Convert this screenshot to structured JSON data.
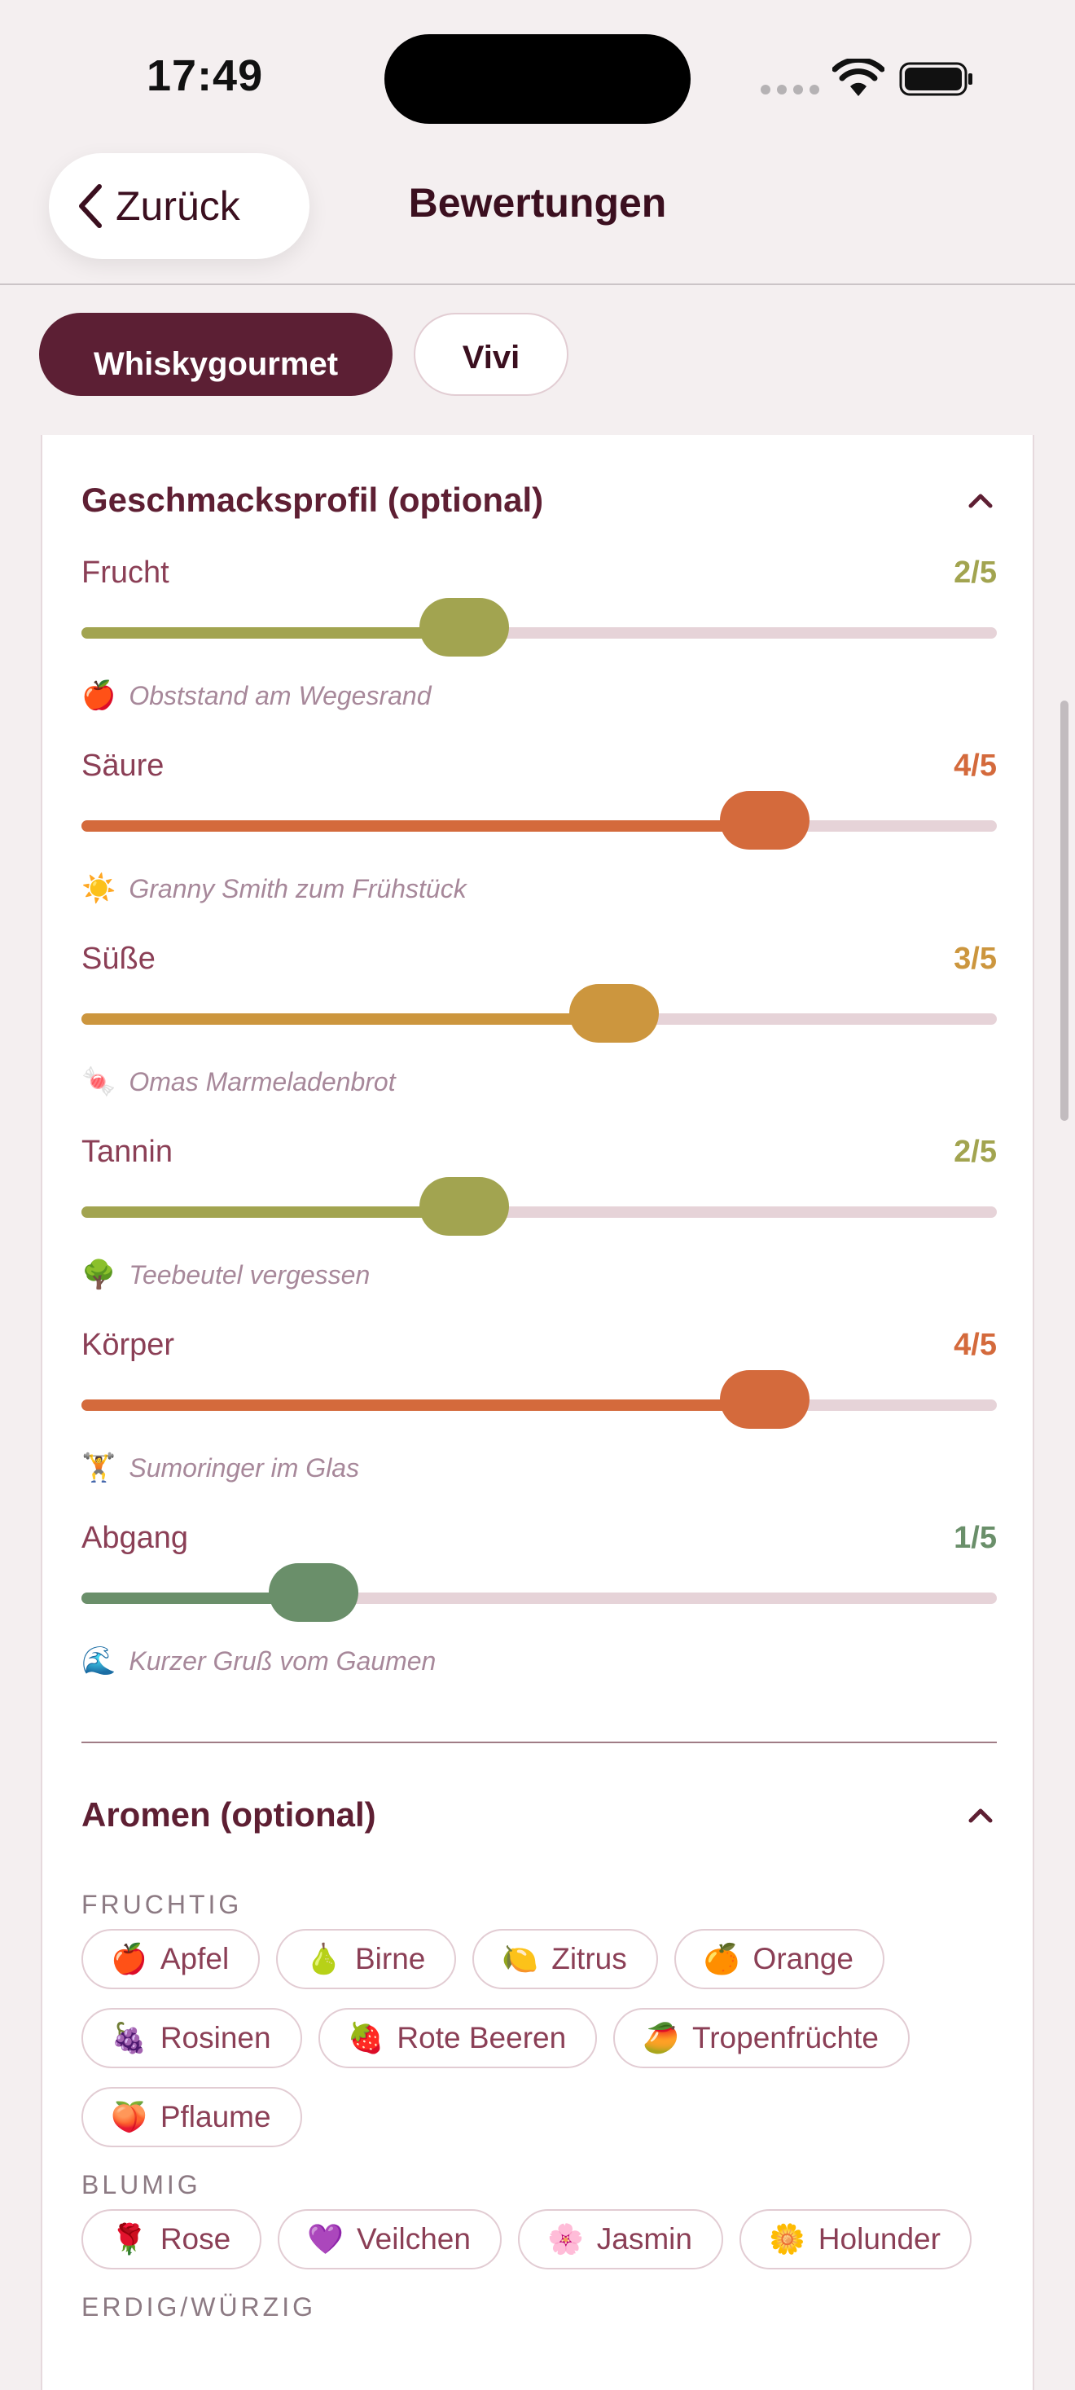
{
  "status": {
    "time": "17:49"
  },
  "nav": {
    "back_label": "Zurück",
    "title": "Bewertungen"
  },
  "tabs": [
    {
      "label": "Whiskygourmet",
      "active": true
    },
    {
      "label": "Vivi",
      "active": false
    }
  ],
  "taste_profile": {
    "title": "Geschmacksprofil (optional)",
    "max": 5,
    "sliders": [
      {
        "label": "Frucht",
        "value": 2,
        "value_text": "2/5",
        "color": "#a2a450",
        "emoji": "🍎",
        "description": "Obststand am Wegesrand"
      },
      {
        "label": "Säure",
        "value": 4,
        "value_text": "4/5",
        "color": "#d46a3c",
        "emoji": "☀️",
        "description": "Granny Smith zum Frühstück"
      },
      {
        "label": "Süße",
        "value": 3,
        "value_text": "3/5",
        "color": "#cc963e",
        "emoji": "🍬",
        "description": "Omas Marmeladenbrot"
      },
      {
        "label": "Tannin",
        "value": 2,
        "value_text": "2/5",
        "color": "#a2a450",
        "emoji": "🌳",
        "description": "Teebeutel vergessen"
      },
      {
        "label": "Körper",
        "value": 4,
        "value_text": "4/5",
        "color": "#d46a3c",
        "emoji": "🏋️",
        "description": "Sumoringer im Glas"
      },
      {
        "label": "Abgang",
        "value": 1,
        "value_text": "1/5",
        "color": "#6a8f6a",
        "emoji": "🌊",
        "description": "Kurzer Gruß vom Gaumen"
      }
    ]
  },
  "aromas": {
    "title": "Aromen (optional)",
    "categories": [
      {
        "name": "FRUCHTIG",
        "rows": [
          [
            {
              "emoji": "🍎",
              "label": "Apfel"
            },
            {
              "emoji": "🍐",
              "label": "Birne"
            },
            {
              "emoji": "🍋",
              "label": "Zitrus"
            },
            {
              "emoji": "🍊",
              "label": "Orange"
            }
          ],
          [
            {
              "emoji": "🍇",
              "label": "Rosinen"
            },
            {
              "emoji": "🍓",
              "label": "Rote Beeren"
            },
            {
              "emoji": "🥭",
              "label": "Tropenfrüchte"
            }
          ],
          [
            {
              "emoji": "🍑",
              "label": "Pflaume"
            }
          ]
        ]
      },
      {
        "name": "BLUMIG",
        "rows": [
          [
            {
              "emoji": "🌹",
              "label": "Rose"
            },
            {
              "emoji": "💜",
              "label": "Veilchen"
            },
            {
              "emoji": "🌸",
              "label": "Jasmin"
            },
            {
              "emoji": "🌼",
              "label": "Holunder"
            }
          ]
        ]
      },
      {
        "name": "ERDIG/WÜRZIG",
        "rows": []
      }
    ]
  }
}
